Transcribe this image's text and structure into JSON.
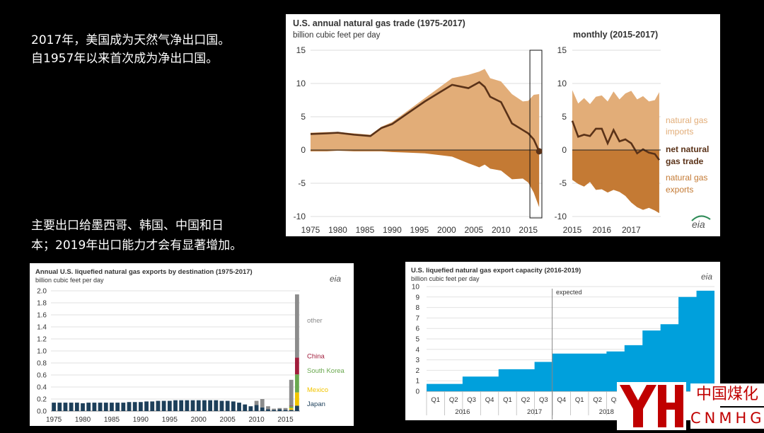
{
  "captions": {
    "line1": "2017年，美国成为天然气净出口国。",
    "line2": "自1957年以来首次成为净出口国。",
    "line3": "主要出口给墨西哥、韩国、中国和日",
    "line4": "本；2019年出口能力才会有显著增加。"
  },
  "colors": {
    "imports": "#e2ad78",
    "exports": "#c47a34",
    "net": "#5a3218",
    "lng_blue": "#00a0dc",
    "japan": "#1d3f5a",
    "other": "#8c8c8c",
    "china": "#a11d3c",
    "korea": "#6aa84f",
    "mexico": "#f2c500"
  },
  "chart_data": [
    {
      "type": "area",
      "title": "U.S. annual natural gas trade (1975-2017)",
      "subtitle": "billion cubic feet per day",
      "right_title": "monthly (2015-2017)",
      "ylim": [
        -10,
        15
      ],
      "y_ticks": [
        "15",
        "10",
        "5",
        "0",
        "-5",
        "-10"
      ],
      "x_ticks": [
        "1975",
        "1980",
        "1985",
        "1990",
        "1995",
        "2000",
        "2005",
        "2010",
        "2015"
      ],
      "monthly_x_ticks": [
        "2015",
        "2016",
        "2017"
      ],
      "legend": {
        "imports_1": "natural gas",
        "imports_2": "imports",
        "net_1": "net natural",
        "net_2": "gas trade",
        "exports_1": "natural gas",
        "exports_2": "exports"
      },
      "logo": "eia",
      "annual": {
        "x": [
          1975,
          1978,
          1980,
          1983,
          1986,
          1988,
          1990,
          1993,
          1996,
          1999,
          2001,
          2004,
          2006,
          2007,
          2008,
          2010,
          2012,
          2014,
          2015,
          2016,
          2017
        ],
        "imports": [
          2.6,
          2.7,
          2.7,
          2.5,
          2.3,
          3.5,
          4.2,
          6.0,
          7.8,
          9.6,
          10.8,
          11.3,
          11.8,
          12.2,
          10.8,
          10.3,
          8.4,
          7.3,
          7.4,
          8.3,
          8.4
        ],
        "exports": [
          -0.2,
          -0.2,
          -0.1,
          -0.2,
          -0.2,
          -0.2,
          -0.3,
          -0.4,
          -0.5,
          -0.8,
          -1.0,
          -2.0,
          -2.6,
          -2.2,
          -2.8,
          -3.1,
          -4.4,
          -4.3,
          -4.9,
          -6.4,
          -8.6
        ],
        "net": [
          2.4,
          2.5,
          2.6,
          2.3,
          2.1,
          3.3,
          3.9,
          5.6,
          7.3,
          8.8,
          9.8,
          9.3,
          10.2,
          9.5,
          8.0,
          7.2,
          4.0,
          3.0,
          2.5,
          1.6,
          -0.2
        ]
      },
      "monthly": {
        "x": [
          2015.0,
          2015.2,
          2015.4,
          2015.6,
          2015.8,
          2016.0,
          2016.2,
          2016.4,
          2016.6,
          2016.8,
          2017.0,
          2017.2,
          2017.4,
          2017.6,
          2017.8,
          2017.95
        ],
        "imports": [
          9.0,
          7.0,
          7.8,
          6.9,
          8.0,
          8.2,
          7.3,
          8.8,
          7.6,
          8.5,
          8.9,
          7.6,
          8.1,
          7.3,
          7.5,
          8.7
        ],
        "exports": [
          -4.5,
          -5.1,
          -5.5,
          -4.8,
          -6.0,
          -5.9,
          -6.4,
          -6.0,
          -6.3,
          -6.9,
          -7.9,
          -8.6,
          -9.0,
          -8.7,
          -9.1,
          -9.5
        ],
        "net": [
          4.4,
          2.0,
          2.3,
          2.1,
          3.2,
          3.2,
          1.0,
          3.0,
          1.3,
          1.6,
          1.0,
          -0.5,
          0.1,
          -0.4,
          -0.6,
          -1.5
        ]
      }
    },
    {
      "type": "bar",
      "title": "Annual U.S. liquefied natural gas exports by destination (1975-2017)",
      "subtitle": "billion cubic feet per day",
      "logo": "eia",
      "ylim": [
        0,
        2.0
      ],
      "y_ticks": [
        "2.0",
        "1.8",
        "1.6",
        "1.4",
        "1.2",
        "1.0",
        "0.8",
        "0.6",
        "0.4",
        "0.2",
        "0.0"
      ],
      "x_ticks": [
        "1975",
        "1980",
        "1985",
        "1990",
        "1995",
        "2000",
        "2005",
        "2010",
        "2015"
      ],
      "years": [
        1975,
        1976,
        1977,
        1978,
        1979,
        1980,
        1981,
        1982,
        1983,
        1984,
        1985,
        1986,
        1987,
        1988,
        1989,
        1990,
        1991,
        1992,
        1993,
        1994,
        1995,
        1996,
        1997,
        1998,
        1999,
        2000,
        2001,
        2002,
        2003,
        2004,
        2005,
        2006,
        2007,
        2008,
        2009,
        2010,
        2011,
        2012,
        2013,
        2014,
        2015,
        2016,
        2017
      ],
      "series": [
        {
          "name": "Japan",
          "values": [
            0.14,
            0.14,
            0.14,
            0.14,
            0.14,
            0.13,
            0.14,
            0.14,
            0.14,
            0.14,
            0.14,
            0.14,
            0.14,
            0.15,
            0.15,
            0.15,
            0.16,
            0.16,
            0.17,
            0.17,
            0.17,
            0.18,
            0.18,
            0.18,
            0.18,
            0.18,
            0.18,
            0.18,
            0.18,
            0.17,
            0.17,
            0.16,
            0.14,
            0.11,
            0.08,
            0.1,
            0.06,
            0.03,
            0.02,
            0.03,
            0.02,
            0.02,
            0.09
          ]
        },
        {
          "name": "Mexico",
          "values": [
            0,
            0,
            0,
            0,
            0,
            0,
            0,
            0,
            0,
            0,
            0,
            0,
            0,
            0,
            0,
            0,
            0,
            0,
            0,
            0,
            0,
            0,
            0,
            0,
            0,
            0,
            0,
            0,
            0,
            0,
            0,
            0,
            0,
            0,
            0,
            0,
            0,
            0,
            0,
            0,
            0,
            0.03,
            0.22
          ]
        },
        {
          "name": "South Korea",
          "values": [
            0,
            0,
            0,
            0,
            0,
            0,
            0,
            0,
            0,
            0,
            0,
            0,
            0,
            0,
            0,
            0,
            0,
            0,
            0,
            0,
            0,
            0,
            0,
            0,
            0,
            0,
            0,
            0,
            0,
            0,
            0,
            0,
            0,
            0,
            0,
            0,
            0,
            0,
            0,
            0,
            0,
            0.03,
            0.3
          ]
        },
        {
          "name": "China",
          "values": [
            0,
            0,
            0,
            0,
            0,
            0,
            0,
            0,
            0,
            0,
            0,
            0,
            0,
            0,
            0,
            0,
            0,
            0,
            0,
            0,
            0,
            0,
            0,
            0,
            0,
            0,
            0,
            0,
            0,
            0,
            0,
            0,
            0,
            0,
            0,
            0,
            0,
            0,
            0,
            0,
            0,
            0.01,
            0.28
          ]
        },
        {
          "name": "other",
          "values": [
            0,
            0,
            0,
            0,
            0,
            0,
            0,
            0,
            0,
            0,
            0,
            0,
            0,
            0,
            0,
            0,
            0,
            0,
            0,
            0,
            0,
            0,
            0,
            0,
            0,
            0,
            0,
            0,
            0,
            0,
            0,
            0,
            0,
            0,
            0,
            0.07,
            0.14,
            0.05,
            0.02,
            0.02,
            0.03,
            0.43,
            1.05
          ]
        }
      ],
      "legend": [
        "other",
        "China",
        "South Korea",
        "Mexico",
        "Japan"
      ]
    },
    {
      "type": "area",
      "title": "U.S. liquefied natural gas export capacity (2016-2019)",
      "subtitle": "billion cubic feet per day",
      "logo": "eia",
      "ylim": [
        0,
        10
      ],
      "y_ticks": [
        "10",
        "9",
        "8",
        "7",
        "6",
        "5",
        "4",
        "3",
        "2",
        "1",
        "0"
      ],
      "quarter_labels": [
        "Q1",
        "Q2",
        "Q3",
        "Q4",
        "Q1",
        "Q2",
        "Q3",
        "Q4",
        "Q1",
        "Q2",
        "Q3"
      ],
      "year_labels": [
        "2016",
        "2017",
        "2018"
      ],
      "annotation": "expected",
      "values": [
        0.7,
        0.7,
        1.4,
        1.4,
        2.1,
        2.1,
        2.8,
        3.6,
        3.6,
        3.6,
        3.8,
        4.4,
        5.8,
        6.4,
        9.0,
        9.6
      ]
    }
  ],
  "logo": {
    "cn": "中国煤化工",
    "en": "CNMHG"
  }
}
